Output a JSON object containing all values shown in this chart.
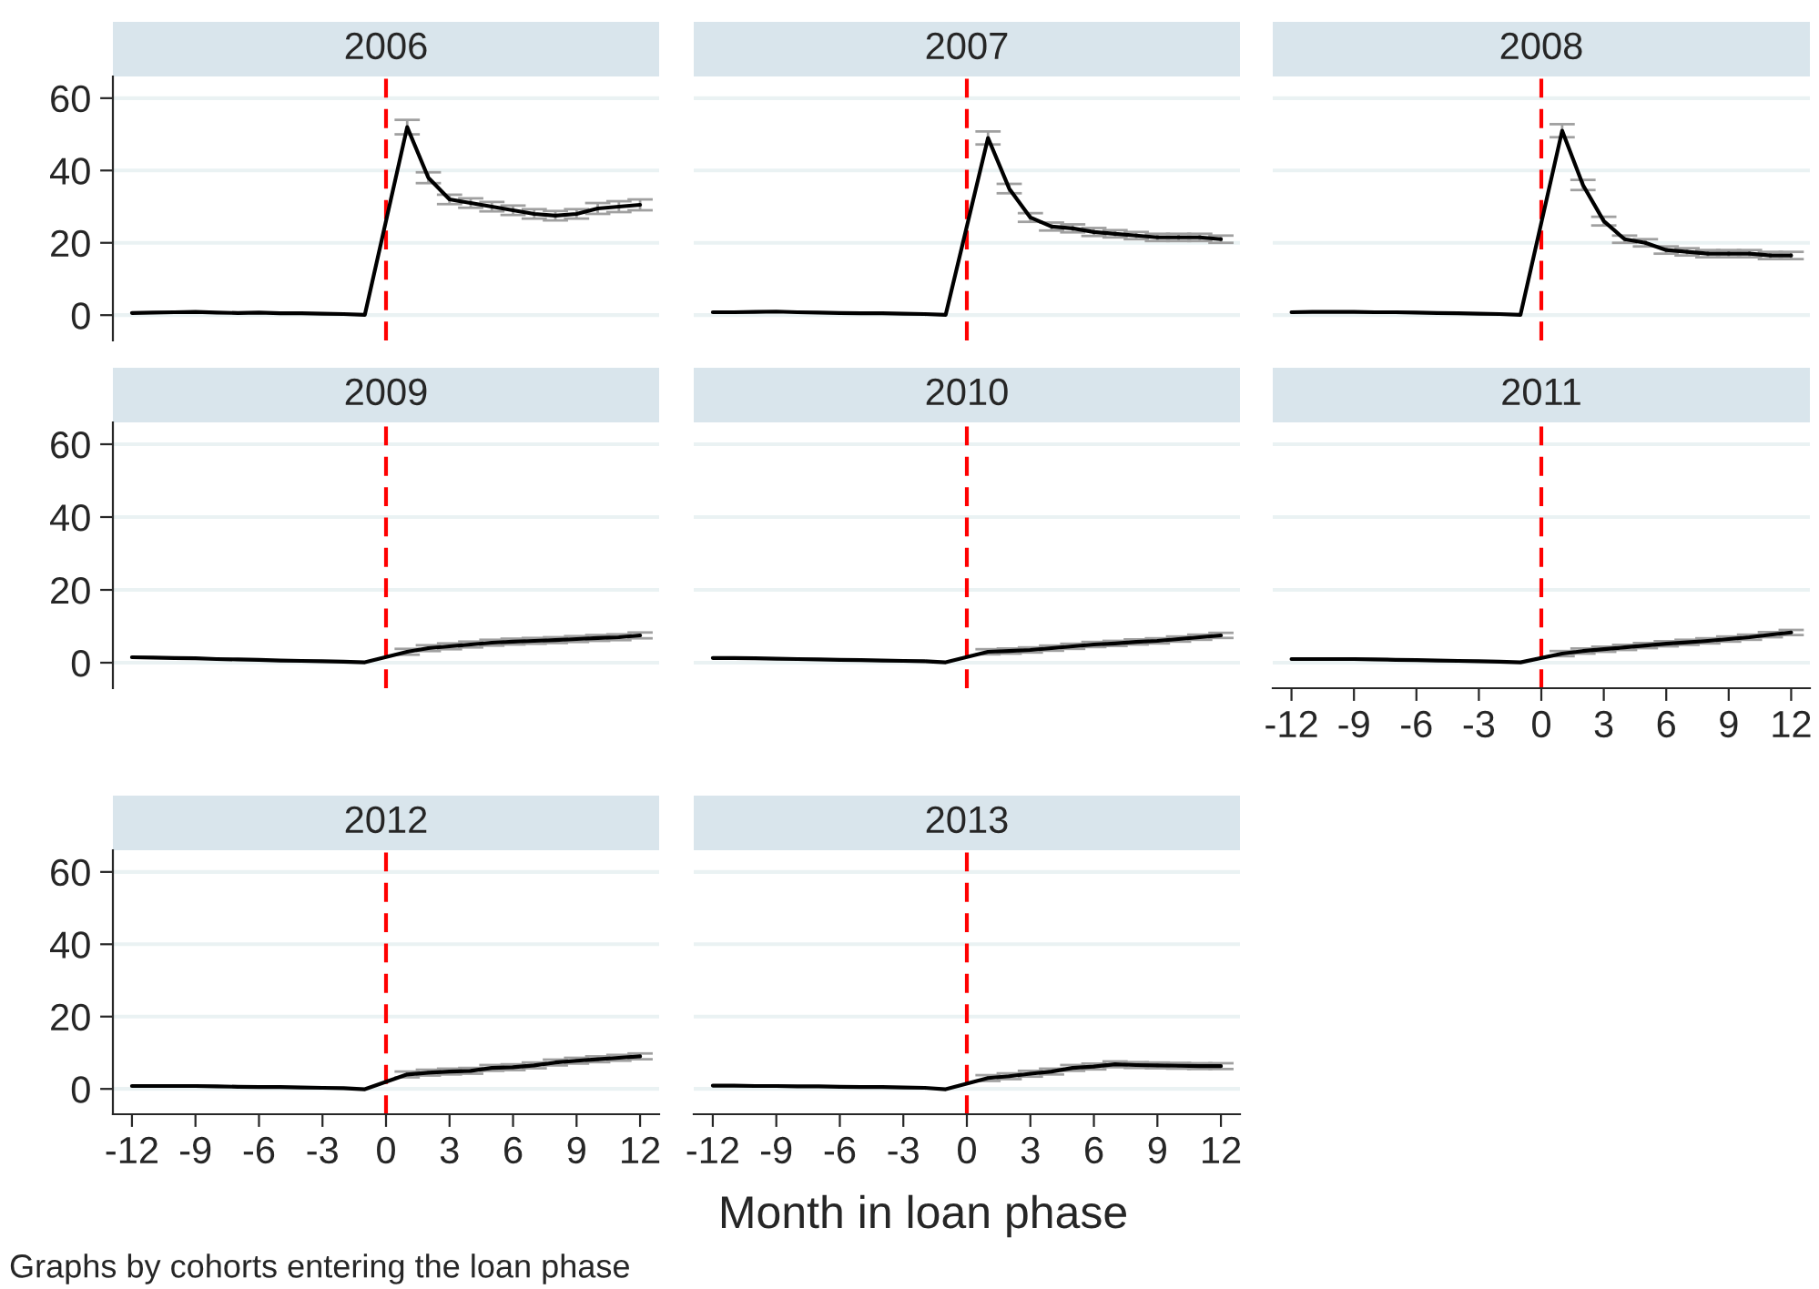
{
  "chart_data": [
    {
      "type": "line",
      "title": "2006",
      "x": [
        -12,
        -11,
        -10,
        -9,
        -8,
        -7,
        -6,
        -5,
        -4,
        -3,
        -2,
        -1,
        1,
        2,
        3,
        4,
        5,
        6,
        7,
        8,
        9,
        10,
        11,
        12
      ],
      "values": [
        0.6,
        0.7,
        0.8,
        0.9,
        0.7,
        0.6,
        0.7,
        0.5,
        0.5,
        0.4,
        0.3,
        0.1,
        52,
        38,
        32,
        31,
        30,
        29,
        28,
        27.5,
        28,
        29.5,
        30,
        30.5
      ],
      "errors": [
        null,
        null,
        null,
        null,
        null,
        null,
        null,
        null,
        null,
        null,
        null,
        null,
        2,
        1.5,
        1.3,
        1.3,
        1.3,
        1.3,
        1.3,
        1.3,
        1.3,
        1.5,
        1.5,
        1.5
      ],
      "color": "#000000",
      "ylim": [
        -7,
        66
      ],
      "yticks": [
        0,
        20,
        40,
        60
      ],
      "xlim": [
        -12.9,
        12.9
      ],
      "xticks": [
        -12,
        -9,
        -6,
        -3,
        0,
        3,
        6,
        9,
        12
      ],
      "ref_lines": [
        {
          "axis": "x",
          "value": 0,
          "color": "#ff0000",
          "line_style": "dashed"
        }
      ],
      "grid": "y",
      "tick_labels": "y"
    },
    {
      "type": "line",
      "title": "2007",
      "x": [
        -12,
        -11,
        -10,
        -9,
        -8,
        -7,
        -6,
        -5,
        -4,
        -3,
        -2,
        -1,
        1,
        2,
        3,
        4,
        5,
        6,
        7,
        8,
        9,
        10,
        11,
        12
      ],
      "values": [
        0.8,
        0.8,
        0.9,
        1,
        0.8,
        0.7,
        0.6,
        0.5,
        0.5,
        0.4,
        0.3,
        0.1,
        49,
        35,
        27,
        24.5,
        24,
        23,
        22.5,
        22,
        21.5,
        21.5,
        21.5,
        21
      ],
      "errors": [
        null,
        null,
        null,
        null,
        null,
        null,
        null,
        null,
        null,
        null,
        null,
        null,
        1.8,
        1.3,
        1.2,
        1.1,
        1.1,
        1.1,
        1,
        1,
        1,
        1,
        1,
        1
      ],
      "color": "#000000",
      "ylim": [
        -7,
        66
      ],
      "yticks": [
        0,
        20,
        40,
        60
      ],
      "xlim": [
        -12.9,
        12.9
      ],
      "xticks": [
        -12,
        -9,
        -6,
        -3,
        0,
        3,
        6,
        9,
        12
      ],
      "ref_lines": [
        {
          "axis": "x",
          "value": 0,
          "color": "#ff0000",
          "line_style": "dashed"
        }
      ],
      "grid": "y",
      "tick_labels": false
    },
    {
      "type": "line",
      "title": "2008",
      "x": [
        -12,
        -11,
        -10,
        -9,
        -8,
        -7,
        -6,
        -5,
        -4,
        -3,
        -2,
        -1,
        1,
        2,
        3,
        4,
        5,
        6,
        7,
        8,
        9,
        10,
        11,
        12
      ],
      "values": [
        0.8,
        0.9,
        0.9,
        0.9,
        0.8,
        0.8,
        0.7,
        0.6,
        0.5,
        0.4,
        0.3,
        0.1,
        51,
        36,
        26,
        21,
        20,
        18,
        17.5,
        17,
        17,
        17,
        16.5,
        16.5
      ],
      "errors": [
        null,
        null,
        null,
        null,
        null,
        null,
        null,
        null,
        null,
        null,
        null,
        null,
        1.8,
        1.4,
        1.2,
        1,
        1,
        1,
        1,
        1,
        1,
        1,
        1,
        1
      ],
      "color": "#000000",
      "ylim": [
        -7,
        66
      ],
      "yticks": [
        0,
        20,
        40,
        60
      ],
      "xlim": [
        -12.9,
        12.9
      ],
      "xticks": [
        -12,
        -9,
        -6,
        -3,
        0,
        3,
        6,
        9,
        12
      ],
      "ref_lines": [
        {
          "axis": "x",
          "value": 0,
          "color": "#ff0000",
          "line_style": "dashed"
        }
      ],
      "grid": "y",
      "tick_labels": false
    },
    {
      "type": "line",
      "title": "2009",
      "x": [
        -12,
        -11,
        -10,
        -9,
        -8,
        -7,
        -6,
        -5,
        -4,
        -3,
        -2,
        -1,
        1,
        2,
        3,
        4,
        5,
        6,
        7,
        8,
        9,
        10,
        11,
        12
      ],
      "values": [
        1.5,
        1.4,
        1.3,
        1.2,
        1,
        0.9,
        0.8,
        0.6,
        0.5,
        0.4,
        0.3,
        0.1,
        3,
        4,
        4.5,
        5,
        5.5,
        5.8,
        6,
        6.2,
        6.5,
        6.8,
        7,
        7.5
      ],
      "errors": [
        null,
        null,
        null,
        null,
        null,
        null,
        null,
        null,
        null,
        null,
        null,
        null,
        0.8,
        0.8,
        0.8,
        0.8,
        0.8,
        0.8,
        0.8,
        0.8,
        0.8,
        0.8,
        0.8,
        0.8
      ],
      "color": "#000000",
      "ylim": [
        -7,
        66
      ],
      "yticks": [
        0,
        20,
        40,
        60
      ],
      "xlim": [
        -12.9,
        12.9
      ],
      "xticks": [
        -12,
        -9,
        -6,
        -3,
        0,
        3,
        6,
        9,
        12
      ],
      "ref_lines": [
        {
          "axis": "x",
          "value": 0,
          "color": "#ff0000",
          "line_style": "dashed"
        }
      ],
      "grid": "y",
      "tick_labels": "y"
    },
    {
      "type": "line",
      "title": "2010",
      "x": [
        -12,
        -11,
        -10,
        -9,
        -8,
        -7,
        -6,
        -5,
        -4,
        -3,
        -2,
        -1,
        1,
        2,
        3,
        4,
        5,
        6,
        7,
        8,
        9,
        10,
        11,
        12
      ],
      "values": [
        1.3,
        1.3,
        1.2,
        1.1,
        1,
        0.9,
        0.8,
        0.7,
        0.6,
        0.5,
        0.4,
        0.1,
        3,
        3.2,
        3.5,
        4,
        4.5,
        5,
        5.3,
        5.7,
        6,
        6.5,
        7,
        7.5
      ],
      "errors": [
        null,
        null,
        null,
        null,
        null,
        null,
        null,
        null,
        null,
        null,
        null,
        null,
        0.7,
        0.7,
        0.7,
        0.7,
        0.7,
        0.7,
        0.7,
        0.7,
        0.7,
        0.7,
        0.7,
        0.7
      ],
      "color": "#000000",
      "ylim": [
        -7,
        66
      ],
      "yticks": [
        0,
        20,
        40,
        60
      ],
      "xlim": [
        -12.9,
        12.9
      ],
      "xticks": [
        -12,
        -9,
        -6,
        -3,
        0,
        3,
        6,
        9,
        12
      ],
      "ref_lines": [
        {
          "axis": "x",
          "value": 0,
          "color": "#ff0000",
          "line_style": "dashed"
        }
      ],
      "grid": "y",
      "tick_labels": false
    },
    {
      "type": "line",
      "title": "2011",
      "x": [
        -12,
        -11,
        -10,
        -9,
        -8,
        -7,
        -6,
        -5,
        -4,
        -3,
        -2,
        -1,
        1,
        2,
        3,
        4,
        5,
        6,
        7,
        8,
        9,
        10,
        11,
        12
      ],
      "values": [
        1,
        1,
        1,
        1,
        0.9,
        0.8,
        0.7,
        0.6,
        0.5,
        0.4,
        0.3,
        0.1,
        2.5,
        3.2,
        3.7,
        4.2,
        4.7,
        5.2,
        5.6,
        6,
        6.5,
        7,
        7.7,
        8.3
      ],
      "errors": [
        null,
        null,
        null,
        null,
        null,
        null,
        null,
        null,
        null,
        null,
        null,
        null,
        0.7,
        0.7,
        0.7,
        0.7,
        0.7,
        0.7,
        0.7,
        0.7,
        0.7,
        0.7,
        0.7,
        0.7
      ],
      "color": "#000000",
      "ylim": [
        -7,
        66
      ],
      "yticks": [
        0,
        20,
        40,
        60
      ],
      "xlim": [
        -12.9,
        12.9
      ],
      "xticks": [
        -12,
        -9,
        -6,
        -3,
        0,
        3,
        6,
        9,
        12
      ],
      "ref_lines": [
        {
          "axis": "x",
          "value": 0,
          "color": "#ff0000",
          "line_style": "dashed"
        }
      ],
      "grid": "y",
      "tick_labels": "x"
    },
    {
      "type": "line",
      "title": "2012",
      "x": [
        -12,
        -11,
        -10,
        -9,
        -8,
        -7,
        -6,
        -5,
        -4,
        -3,
        -2,
        -1,
        1,
        2,
        3,
        4,
        5,
        6,
        7,
        8,
        9,
        10,
        11,
        12
      ],
      "values": [
        0.8,
        0.8,
        0.8,
        0.8,
        0.7,
        0.6,
        0.5,
        0.5,
        0.4,
        0.3,
        0.2,
        -0.1,
        4,
        4.5,
        4.8,
        5,
        5.8,
        6,
        6.5,
        7.3,
        7.8,
        8.2,
        8.6,
        9
      ],
      "errors": [
        null,
        null,
        null,
        null,
        null,
        null,
        null,
        null,
        null,
        null,
        null,
        null,
        0.8,
        0.8,
        0.8,
        0.8,
        0.8,
        0.8,
        0.8,
        0.8,
        0.8,
        0.8,
        0.8,
        0.8
      ],
      "color": "#000000",
      "ylim": [
        -7,
        66
      ],
      "yticks": [
        0,
        20,
        40,
        60
      ],
      "xlim": [
        -12.9,
        12.9
      ],
      "xticks": [
        -12,
        -9,
        -6,
        -3,
        0,
        3,
        6,
        9,
        12
      ],
      "ref_lines": [
        {
          "axis": "x",
          "value": 0,
          "color": "#ff0000",
          "line_style": "dashed"
        }
      ],
      "grid": "y"
    },
    {
      "type": "line",
      "title": "2013",
      "x": [
        -12,
        -11,
        -10,
        -9,
        -8,
        -7,
        -6,
        -5,
        -4,
        -3,
        -2,
        -1,
        1,
        2,
        3,
        4,
        5,
        6,
        7,
        8,
        9,
        10,
        11,
        12
      ],
      "values": [
        0.9,
        0.9,
        0.8,
        0.8,
        0.7,
        0.7,
        0.6,
        0.5,
        0.5,
        0.4,
        0.3,
        -0.1,
        3,
        3.5,
        4.2,
        4.8,
        5.8,
        6.2,
        6.8,
        6.6,
        6.5,
        6.4,
        6.3,
        6.3
      ],
      "errors": [
        null,
        null,
        null,
        null,
        null,
        null,
        null,
        null,
        null,
        null,
        null,
        null,
        0.8,
        0.8,
        0.8,
        0.8,
        0.8,
        0.8,
        0.8,
        0.8,
        0.8,
        0.8,
        0.8,
        0.8
      ],
      "color": "#000000",
      "ylim": [
        -7,
        66
      ],
      "yticks": [
        0,
        20,
        40,
        60
      ],
      "xlim": [
        -12.9,
        12.9
      ],
      "xticks": [
        -12,
        -9,
        -6,
        -3,
        0,
        3,
        6,
        9,
        12
      ],
      "ref_lines": [
        {
          "axis": "x",
          "value": 0,
          "color": "#ff0000",
          "line_style": "dashed"
        }
      ],
      "grid": "y",
      "tick_labels": "x",
      "xlabel": "Month in loan phase",
      "annotations": [
        "Graphs by cohorts entering the loan phase"
      ]
    }
  ]
}
